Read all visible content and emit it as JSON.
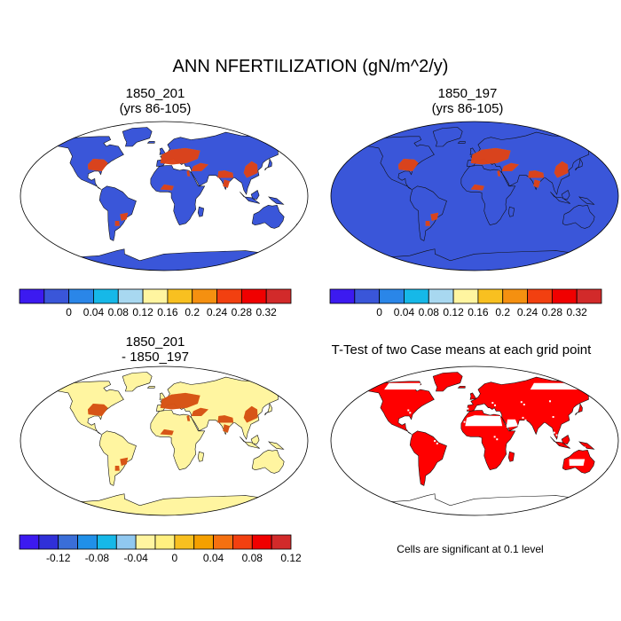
{
  "title": "ANN NFERTILIZATION (gN/m^2/y)",
  "panels": [
    {
      "id": "p1",
      "title_line1": "1850_201",
      "title_line2": "(yrs 86-105)",
      "ocean": "#ffffff",
      "land": "#3a56d9",
      "hotspot_fill": "#d62020",
      "hotspot_warm": "#f5b400"
    },
    {
      "id": "p2",
      "title_line1": "1850_197",
      "title_line2": "(yrs 86-105)",
      "ocean": "#3a56d9",
      "land": "#3a56d9",
      "hotspot_fill": "#d62020",
      "hotspot_warm": "#f5b400"
    },
    {
      "id": "p3",
      "title_line1": "1850_201",
      "title_line2": "- 1850_197",
      "ocean": "#ffffff",
      "land": "#fff5a0",
      "hotspot_fill": "#cc3a1a",
      "hotspot_warm": "#f5a000"
    },
    {
      "id": "p4",
      "title_line1": "T-Test of two Case means at each grid point",
      "title_line2": "",
      "ocean": "#ffffff",
      "land": "#ff0000",
      "hotspot_fill": "#ff0000",
      "hotspot_warm": "#ff0000"
    }
  ],
  "colorbar_abs": {
    "colors": [
      "#3c1af0",
      "#3a56d9",
      "#2a86e8",
      "#16b8e8",
      "#a8d8f0",
      "#fff5a0",
      "#f8c020",
      "#f59010",
      "#f24010",
      "#f00000",
      "#d22a2a"
    ],
    "labels": [
      "0",
      "0.04",
      "0.08",
      "0.12",
      "0.16",
      "0.2",
      "0.24",
      "0.28",
      "0.32"
    ]
  },
  "colorbar_diff": {
    "colors": [
      "#3c1af0",
      "#3030d8",
      "#3a6ed8",
      "#2090e8",
      "#16b8e8",
      "#90c8f0",
      "#fff5a0",
      "#fff080",
      "#f8c020",
      "#f5a000",
      "#f57010",
      "#f24010",
      "#f00000",
      "#d22a2a"
    ],
    "labels": [
      "-0.12",
      "-0.08",
      "-0.04",
      "0",
      "0.04",
      "0.08",
      "0.12"
    ]
  },
  "note": "Cells are significant at 0.1 level"
}
